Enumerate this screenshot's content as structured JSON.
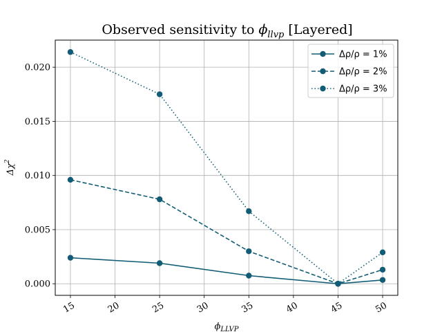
{
  "chart_data": {
    "type": "line",
    "title_prefix": "Observed sensitivity to ",
    "title_symbol": "ϕ",
    "title_subscript": "llvp",
    "title_suffix": " [Layered]",
    "xlabel_symbol": "ϕ",
    "xlabel_subscript": "LLVP",
    "ylabel_prefix": "Δχ",
    "ylabel_sup": "2",
    "x": [
      15,
      25,
      35,
      45,
      50
    ],
    "xlim": [
      13.3,
      51.7
    ],
    "ylim": [
      -0.00107,
      0.0225
    ],
    "xticks": [
      15,
      20,
      25,
      30,
      35,
      40,
      45,
      50
    ],
    "yticks": [
      0.0,
      0.005,
      0.01,
      0.015,
      0.02
    ],
    "ytick_labels": [
      "0.000",
      "0.005",
      "0.010",
      "0.015",
      "0.020"
    ],
    "grid": true,
    "legend_position": "top-right",
    "color": "#125d75",
    "series": [
      {
        "name": "Δρ/ρ = 1%",
        "style": "solid",
        "values": [
          0.0024,
          0.0019,
          0.00075,
          0.0,
          0.00035
        ]
      },
      {
        "name": "Δρ/ρ = 2%",
        "style": "dashed",
        "values": [
          0.0096,
          0.0078,
          0.003,
          0.0,
          0.0013
        ]
      },
      {
        "name": "Δρ/ρ = 3%",
        "style": "dotted",
        "values": [
          0.0214,
          0.0175,
          0.0067,
          0.0,
          0.0029
        ]
      }
    ]
  }
}
